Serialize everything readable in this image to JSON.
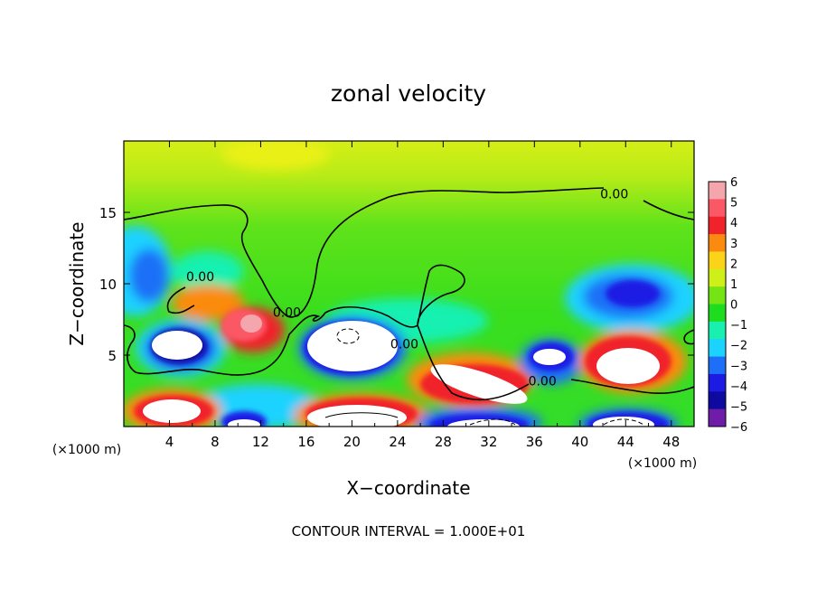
{
  "chart_data": {
    "type": "heatmap",
    "title": "zonal velocity",
    "xlabel": "X−coordinate",
    "ylabel": "Z−coordinate",
    "x_unit_left": "(×1000 m)",
    "x_unit_right": "(×1000 m)",
    "x_ticks": [
      4,
      8,
      12,
      16,
      20,
      24,
      28,
      32,
      36,
      40,
      44,
      48
    ],
    "y_ticks": [
      5,
      10,
      15
    ],
    "xlim": [
      0,
      50
    ],
    "ylim": [
      0,
      20
    ],
    "footer": "CONTOUR INTERVAL = 1.000E+01",
    "contour_labels": [
      {
        "text": "0.00",
        "x": 6.7,
        "y": 10.5
      },
      {
        "text": "0.00",
        "x": 14.3,
        "y": 8.0
      },
      {
        "text": "0.00",
        "x": 24.6,
        "y": 5.8
      },
      {
        "text": "0.00",
        "x": 36.7,
        "y": 3.2
      },
      {
        "text": "0.00",
        "x": 43.0,
        "y": 16.3
      }
    ],
    "colorbar": {
      "ticks": [
        "6",
        "5",
        "4",
        "3",
        "2",
        "1",
        "0",
        "−1",
        "−2",
        "−3",
        "−4",
        "−5",
        "−6"
      ],
      "colors": [
        "#f4a6ac",
        "#fb5866",
        "#f0232a",
        "#fb8b10",
        "#fbd41a",
        "#cef018",
        "#74e414",
        "#1ddd1e",
        "#19f0b0",
        "#1cd2ff",
        "#1e6ff7",
        "#1d1ae4",
        "#0f0a9f",
        "#6f1ca9"
      ]
    }
  }
}
